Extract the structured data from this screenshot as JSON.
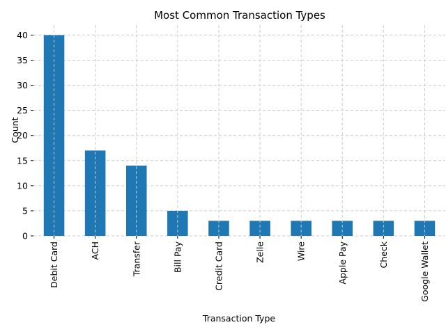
{
  "chart_data": {
    "type": "bar",
    "title": "Most Common Transaction Types",
    "xlabel": "Transaction Type",
    "ylabel": "Count",
    "categories": [
      "Debit Card",
      "ACH",
      "Transfer",
      "Bill Pay",
      "Credit Card",
      "Zelle",
      "Wire",
      "Apple Pay",
      "Check",
      "Google Wallet"
    ],
    "values": [
      40,
      17,
      14,
      5,
      3,
      3,
      3,
      3,
      3,
      3
    ],
    "ylim": [
      0,
      42
    ],
    "yticks": [
      0,
      5,
      10,
      15,
      20,
      25,
      30,
      35,
      40
    ],
    "grid": true,
    "bar_color": "#1f77b4",
    "grid_color": "#cccccc"
  }
}
